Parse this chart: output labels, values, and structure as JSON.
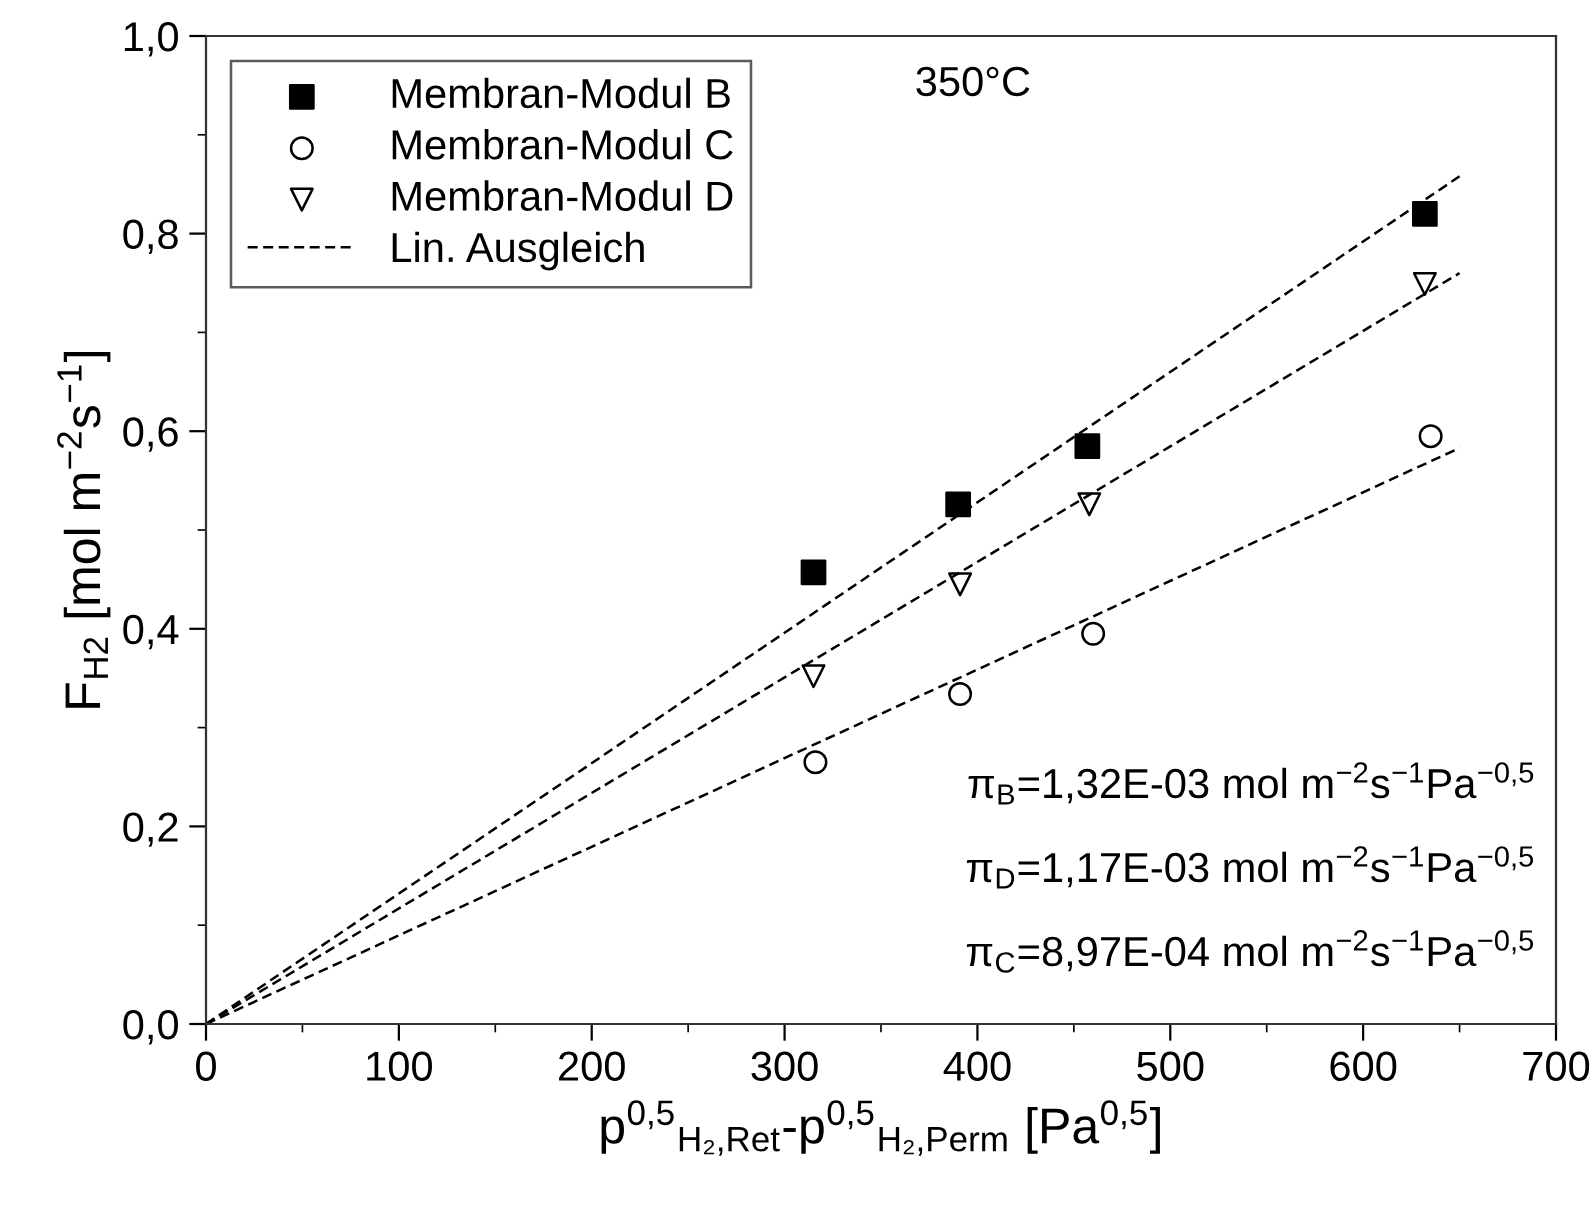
{
  "chart_data": {
    "type": "scatter",
    "xlabel": "p$^{0,5}$$_{H₂,Ret}$-p$^{0,5}$$_{H₂,Perm}$ [Pa$^{0,5}$]",
    "ylabel": "F$_{H2}$ [mol m$^{−2}$s$^{−1}$]",
    "xlim": [
      0,
      700
    ],
    "xticks": [
      0,
      100,
      200,
      300,
      400,
      500,
      600,
      700
    ],
    "ylim": [
      0,
      1.0
    ],
    "yticks": [
      {
        "value": 0,
        "label": "0,0"
      },
      {
        "value": 0.2,
        "label": "0,2"
      },
      {
        "value": 0.4,
        "label": "0,4"
      },
      {
        "value": 0.6,
        "label": "0,6"
      },
      {
        "value": 0.8,
        "label": "0,8"
      },
      {
        "value": 1.0,
        "label": "1,0"
      }
    ],
    "grid": false,
    "legend": "top left",
    "series": [
      {
        "name": "Membran-Modul B",
        "marker": "square",
        "color": "#000000",
        "x": [
          315,
          390,
          457,
          632
        ],
        "values": [
          0.457,
          0.526,
          0.585,
          0.82
        ]
      },
      {
        "name": "Membran-Modul C",
        "marker": "circle",
        "color": "#000000",
        "x": [
          316,
          391,
          460,
          635
        ],
        "values": [
          0.265,
          0.334,
          0.395,
          0.595
        ]
      },
      {
        "name": "Membran-Modul D",
        "marker": "triangle",
        "color": "#000000",
        "x": [
          315,
          391,
          458,
          632
        ],
        "values": [
          0.352,
          0.445,
          0.526,
          0.749
        ]
      },
      {
        "name": "Lin. Ausgleich",
        "type": "line",
        "line_style": "dashed",
        "color": "#000000",
        "x": [
          0,
          650
        ],
        "values": [
          0,
          0.858
        ]
      },
      {
        "type": "line",
        "line_style": "dashed",
        "color": "#000000",
        "x": [
          0,
          650
        ],
        "values": [
          0,
          0.76
        ]
      },
      {
        "type": "line",
        "line_style": "dashed",
        "color": "#000000",
        "x": [
          0,
          650
        ],
        "values": [
          0,
          0.583
        ]
      }
    ],
    "annotations": [
      "350°C",
      "π$_{B}$=1,32E-03 mol m$^{−2}$s$^{−1}$Pa$^{−0,5}$",
      "π$_{D}$=1,17E-03 mol m$^{−2}$s$^{−1}$Pa$^{−0,5}$",
      "π$_{C}$=8,97E-04 mol m$^{−2}$s$^{−1}$Pa$^{−0,5}$"
    ]
  }
}
